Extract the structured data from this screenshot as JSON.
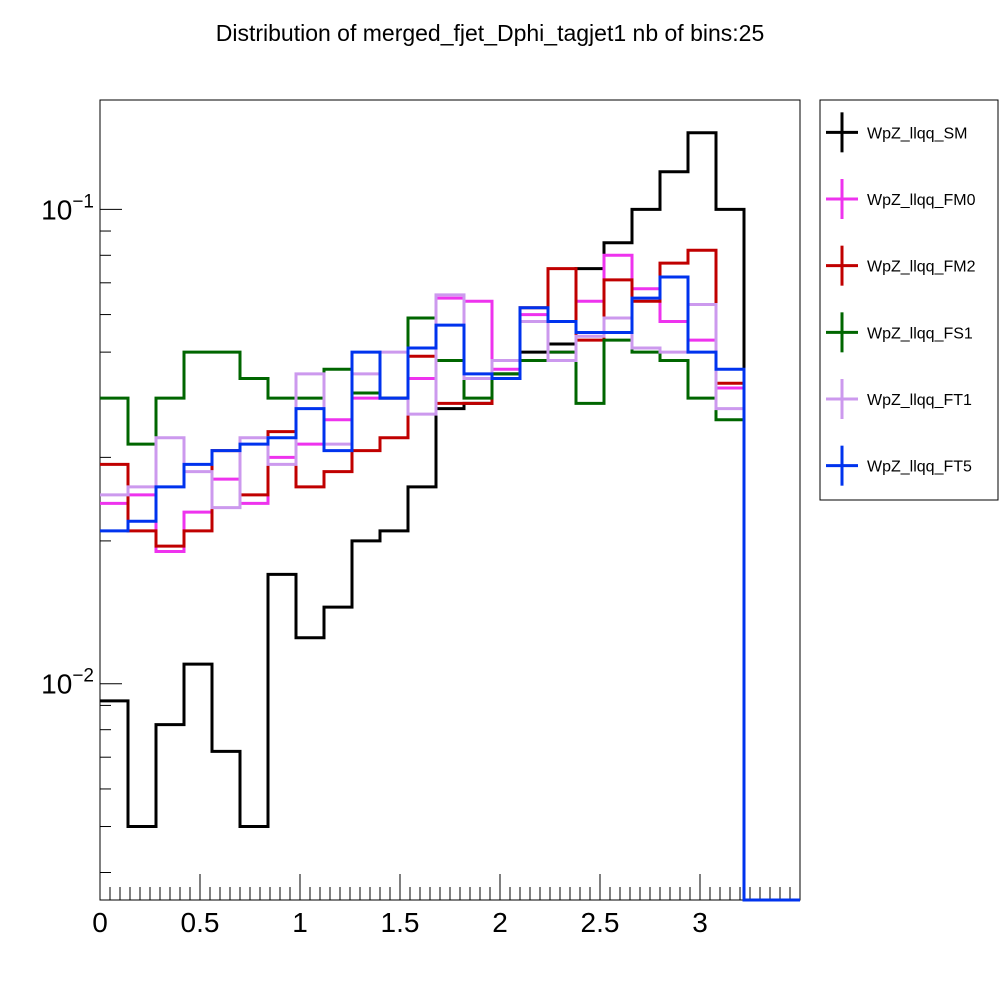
{
  "chart_data": {
    "type": "line",
    "title": "Distribution of merged_fjet_Dphi_tagjet1 nb of bins:25",
    "xlabel": "",
    "ylabel": "",
    "xlim": [
      0,
      3.5
    ],
    "ylim": [
      0.0035,
      0.17
    ],
    "y_scale": "log",
    "grid": false,
    "legend_position": "right",
    "x_ticks": [
      "0",
      "0.5",
      "1",
      "1.5",
      "2",
      "2.5",
      "3"
    ],
    "y_ticks": [
      {
        "base": "10",
        "exp": "−1",
        "value": 0.1
      },
      {
        "base": "10",
        "exp": "−2",
        "value": 0.01
      }
    ],
    "bin_edges": [
      0,
      0.14,
      0.28,
      0.42,
      0.56,
      0.7,
      0.84,
      0.98,
      1.12,
      1.26,
      1.4,
      1.54,
      1.68,
      1.82,
      1.96,
      2.1,
      2.24,
      2.38,
      2.52,
      2.66,
      2.8,
      2.94,
      3.08,
      3.22,
      3.36,
      3.5
    ],
    "series": [
      {
        "name": "WpZ_llqq_SM",
        "color": "#000000",
        "values": [
          0.0092,
          0.005,
          0.0082,
          0.011,
          0.0072,
          0.005,
          0.017,
          0.0125,
          0.0145,
          0.02,
          0.021,
          0.026,
          0.038,
          0.039,
          0.045,
          0.05,
          0.052,
          0.075,
          0.085,
          0.1,
          0.12,
          0.145,
          0.1,
          0,
          0
        ]
      },
      {
        "name": "WpZ_llqq_FM0",
        "color": "#ee33ee",
        "values": [
          0.024,
          0.025,
          0.019,
          0.023,
          0.027,
          0.024,
          0.03,
          0.032,
          0.036,
          0.04,
          0.04,
          0.044,
          0.065,
          0.064,
          0.046,
          0.06,
          0.05,
          0.064,
          0.08,
          0.068,
          0.058,
          0.053,
          0.042,
          0,
          0
        ]
      },
      {
        "name": "WpZ_llqq_FM2",
        "color": "#c00000",
        "values": [
          0.029,
          0.021,
          0.0195,
          0.021,
          0.031,
          0.025,
          0.034,
          0.026,
          0.028,
          0.031,
          0.033,
          0.049,
          0.039,
          0.039,
          0.048,
          0.062,
          0.075,
          0.053,
          0.071,
          0.064,
          0.077,
          0.082,
          0.043,
          0,
          0
        ]
      },
      {
        "name": "WpZ_llqq_FS1",
        "color": "#006600",
        "values": [
          0.04,
          0.032,
          0.04,
          0.05,
          0.05,
          0.044,
          0.04,
          0.04,
          0.046,
          0.041,
          0.04,
          0.059,
          0.048,
          0.04,
          0.045,
          0.048,
          0.05,
          0.039,
          0.053,
          0.05,
          0.048,
          0.04,
          0.036,
          0,
          0
        ]
      },
      {
        "name": "WpZ_llqq_FT1",
        "color": "#cc99ee",
        "values": [
          0.025,
          0.026,
          0.033,
          0.028,
          0.0235,
          0.033,
          0.029,
          0.045,
          0.032,
          0.045,
          0.05,
          0.037,
          0.066,
          0.044,
          0.048,
          0.058,
          0.048,
          0.054,
          0.059,
          0.051,
          0.05,
          0.063,
          0.038,
          0,
          0
        ]
      },
      {
        "name": "WpZ_llqq_FT5",
        "color": "#0033ee",
        "values": [
          0.021,
          0.022,
          0.026,
          0.029,
          0.031,
          0.032,
          0.033,
          0.038,
          0.031,
          0.05,
          0.04,
          0.051,
          0.057,
          0.045,
          0.044,
          0.062,
          0.058,
          0.055,
          0.055,
          0.065,
          0.072,
          0.05,
          0.046,
          0,
          0
        ]
      }
    ]
  }
}
